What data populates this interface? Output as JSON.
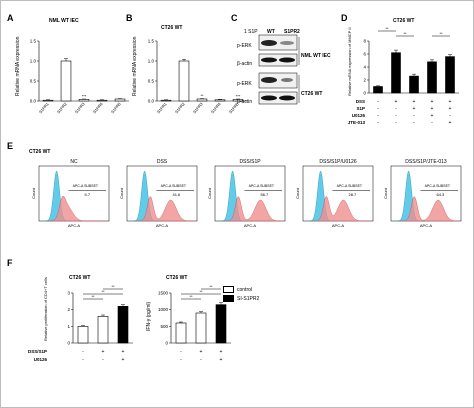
{
  "panels": {
    "A": {
      "letter": "A",
      "title": "NML WT IEC",
      "ylabel": "Relative mRNA expression",
      "categories": [
        "S1PR1",
        "S1PR2",
        "S1PR3",
        "S1PR4",
        "S1PR5"
      ],
      "values": [
        0.02,
        1.0,
        0.04,
        0.02,
        0.05
      ],
      "errors": [
        0.01,
        0.06,
        0.01,
        0.01,
        0.01
      ],
      "yticks": [
        "0.0",
        "0.5",
        "1.0",
        "1.5"
      ],
      "stars": [
        "",
        "",
        "***",
        "",
        ""
      ]
    },
    "B": {
      "letter": "B",
      "title": "CT26 WT",
      "ylabel": "Relative mRNA expression",
      "categories": [
        "S1PR1",
        "S1PR2",
        "S1PR3",
        "S1PR4",
        "S1PR5"
      ],
      "values": [
        0.02,
        1.0,
        0.05,
        0.03,
        0.04
      ],
      "errors": [
        0.01,
        0.04,
        0.01,
        0.01,
        0.01
      ],
      "yticks": [
        "0.0",
        "0.5",
        "1.0",
        "1.5"
      ],
      "stars": [
        "",
        "",
        "**",
        "",
        "***"
      ]
    },
    "C": {
      "letter": "C",
      "header": "1 S1P",
      "col1": "WT",
      "col2": "S1PR2",
      "rows": [
        "p-ERK",
        "β-actin",
        "p-ERK",
        "β-actin"
      ],
      "group1": "NML WT IEC",
      "group2": "CT26 WT"
    },
    "D": {
      "letter": "D",
      "title": "CT26 WT",
      "ylabel": "Relative mRNA expression of MMCP II",
      "values": [
        1.0,
        6.2,
        2.6,
        4.8,
        5.6
      ],
      "errors": [
        0.1,
        0.4,
        0.3,
        0.3,
        0.3
      ],
      "yticks": [
        "0",
        "2",
        "4",
        "6",
        "8"
      ],
      "row_labels": [
        "DSS",
        "S1P",
        "U0126",
        "JTE-013"
      ],
      "signs": [
        [
          "-",
          "+",
          "+",
          "+",
          "+"
        ],
        [
          "-",
          "-",
          "+",
          "+",
          "+"
        ],
        [
          "-",
          "-",
          "-",
          "+",
          "-"
        ],
        [
          "-",
          "-",
          "-",
          "-",
          "+"
        ]
      ],
      "stars": [
        "**",
        "**",
        "**"
      ]
    },
    "E": {
      "letter": "E",
      "row_title": "CT26 WT",
      "xlabel": "APC-A",
      "ylabel": "Count",
      "plots": [
        {
          "title": "NC",
          "gate_label": "APC-A SUBSET",
          "pct": "5.7"
        },
        {
          "title": "DSS",
          "gate_label": "APC-A SUBSET",
          "pct": "41.6"
        },
        {
          "title": "DSS/S1P",
          "gate_label": "APC-A SUBSET",
          "pct": "56.7"
        },
        {
          "title": "DSS/S1P/U0126",
          "gate_label": "APC-A SUBSET",
          "pct": "28.7"
        },
        {
          "title": "DSS/S1P/JTE-013",
          "gate_label": "APC-A SUBSET",
          "pct": "64.3"
        }
      ]
    },
    "F": {
      "letter": "F",
      "left": {
        "title": "CT26 WT",
        "ylabel": "Relative proliferation of CD4+T cells",
        "values": [
          1.0,
          1.6,
          2.2
        ],
        "errors": [
          0.05,
          0.08,
          0.1
        ],
        "yticks": [
          "0",
          "1",
          "2",
          "3"
        ],
        "stars": [
          "**",
          "**",
          "**"
        ]
      },
      "right": {
        "title": "CT26 WT",
        "ylabel": "IFN-γ (pg/ml)",
        "values": [
          600,
          900,
          1150
        ],
        "errors": [
          30,
          40,
          60
        ],
        "yticks": [
          "0",
          "500",
          "1000",
          "1500"
        ],
        "stars": [
          "**",
          "**",
          "**"
        ]
      },
      "row_labels": [
        "DSS/S1P",
        "U0126"
      ],
      "signs": [
        [
          "-",
          "+",
          "+"
        ],
        [
          "-",
          "-",
          "+"
        ]
      ],
      "legend": [
        {
          "label": "control",
          "color": "#ffffff"
        },
        {
          "label": "SI-S1PR2",
          "color": "#000000"
        }
      ]
    }
  },
  "colors": {
    "blue_hist": "#4fc7e8",
    "red_hist": "#ee8f8f"
  }
}
